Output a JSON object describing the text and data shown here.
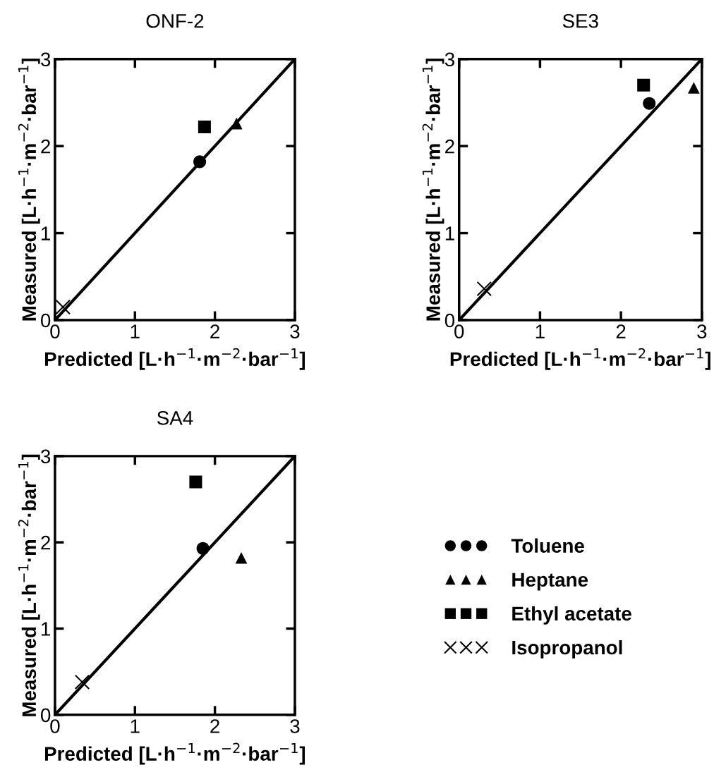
{
  "chart_data": [
    {
      "type": "scatter",
      "title": "ONF-2",
      "xlabel": "Predicted [L·h$^{−1}$·m$^{−2}$·bar$^{−1}$]",
      "ylabel": "Measured [L·h$^{−1}$·m$^{−2}$·bar$^{−1}$]",
      "xlim": [
        0,
        3
      ],
      "ylim": [
        0,
        3
      ],
      "xticks": [
        0,
        1,
        2,
        3
      ],
      "yticks": [
        0,
        1,
        2,
        3
      ],
      "grid": false,
      "series": [
        {
          "color": "#000000",
          "marker": "circle",
          "x": [
            1.81
          ],
          "values": [
            1.82
          ]
        },
        {
          "color": "#000000",
          "marker": "triangle",
          "x": [
            2.27
          ],
          "values": [
            2.26
          ]
        },
        {
          "color": "#000000",
          "marker": "square",
          "x": [
            1.87
          ],
          "values": [
            2.22
          ]
        },
        {
          "color": "#000000",
          "marker": "cross",
          "x": [
            0.1
          ],
          "values": [
            0.15
          ]
        },
        {
          "type": "line",
          "color": "#000000",
          "marker": "none",
          "line_style": "solid",
          "x": [
            0,
            3
          ],
          "values": [
            0,
            3
          ]
        }
      ]
    },
    {
      "type": "scatter",
      "title": "SE3",
      "xlabel": "Predicted [L·h$^{−1}$·m$^{−2}$·bar$^{−1}$]",
      "ylabel": "Measured [L·h$^{−1}$·m$^{−2}$·bar$^{−1}$]",
      "xlim": [
        0,
        3
      ],
      "ylim": [
        0,
        3
      ],
      "xticks": [
        0,
        1,
        2,
        3
      ],
      "yticks": [
        0,
        1,
        2,
        3
      ],
      "grid": false,
      "series": [
        {
          "color": "#000000",
          "marker": "circle",
          "x": [
            2.35
          ],
          "values": [
            2.49
          ]
        },
        {
          "color": "#000000",
          "marker": "triangle",
          "x": [
            2.9
          ],
          "values": [
            2.67
          ]
        },
        {
          "color": "#000000",
          "marker": "square",
          "x": [
            2.28
          ],
          "values": [
            2.7
          ]
        },
        {
          "color": "#000000",
          "marker": "cross",
          "x": [
            0.31
          ],
          "values": [
            0.36
          ]
        },
        {
          "type": "line",
          "color": "#000000",
          "marker": "none",
          "line_style": "solid",
          "x": [
            0,
            3
          ],
          "values": [
            0,
            3
          ]
        }
      ]
    },
    {
      "type": "scatter",
      "title": "SA4",
      "xlabel": "Predicted [L·h$^{−1}$·m$^{−2}$·bar$^{−1}$]",
      "ylabel": "Measured [L·h$^{−1}$·m$^{−2}$·bar$^{−1}$]",
      "xlim": [
        0,
        3
      ],
      "ylim": [
        0,
        3
      ],
      "xticks": [
        0,
        1,
        2,
        3
      ],
      "yticks": [
        0,
        1,
        2,
        3
      ],
      "grid": false,
      "legend": "right",
      "series": [
        {
          "name": "Toluene",
          "color": "#000000",
          "marker": "circle",
          "x": [
            1.85
          ],
          "values": [
            1.93
          ]
        },
        {
          "name": "Heptane",
          "color": "#000000",
          "marker": "triangle",
          "x": [
            2.33
          ],
          "values": [
            1.82
          ]
        },
        {
          "name": "Ethyl acetate",
          "color": "#000000",
          "marker": "square",
          "x": [
            1.76
          ],
          "values": [
            2.7
          ]
        },
        {
          "name": "Isopropanol",
          "color": "#000000",
          "marker": "cross",
          "x": [
            0.34
          ],
          "values": [
            0.38
          ]
        },
        {
          "type": "line",
          "color": "#000000",
          "marker": "none",
          "line_style": "solid",
          "x": [
            0,
            3
          ],
          "values": [
            0,
            3
          ]
        }
      ]
    }
  ]
}
